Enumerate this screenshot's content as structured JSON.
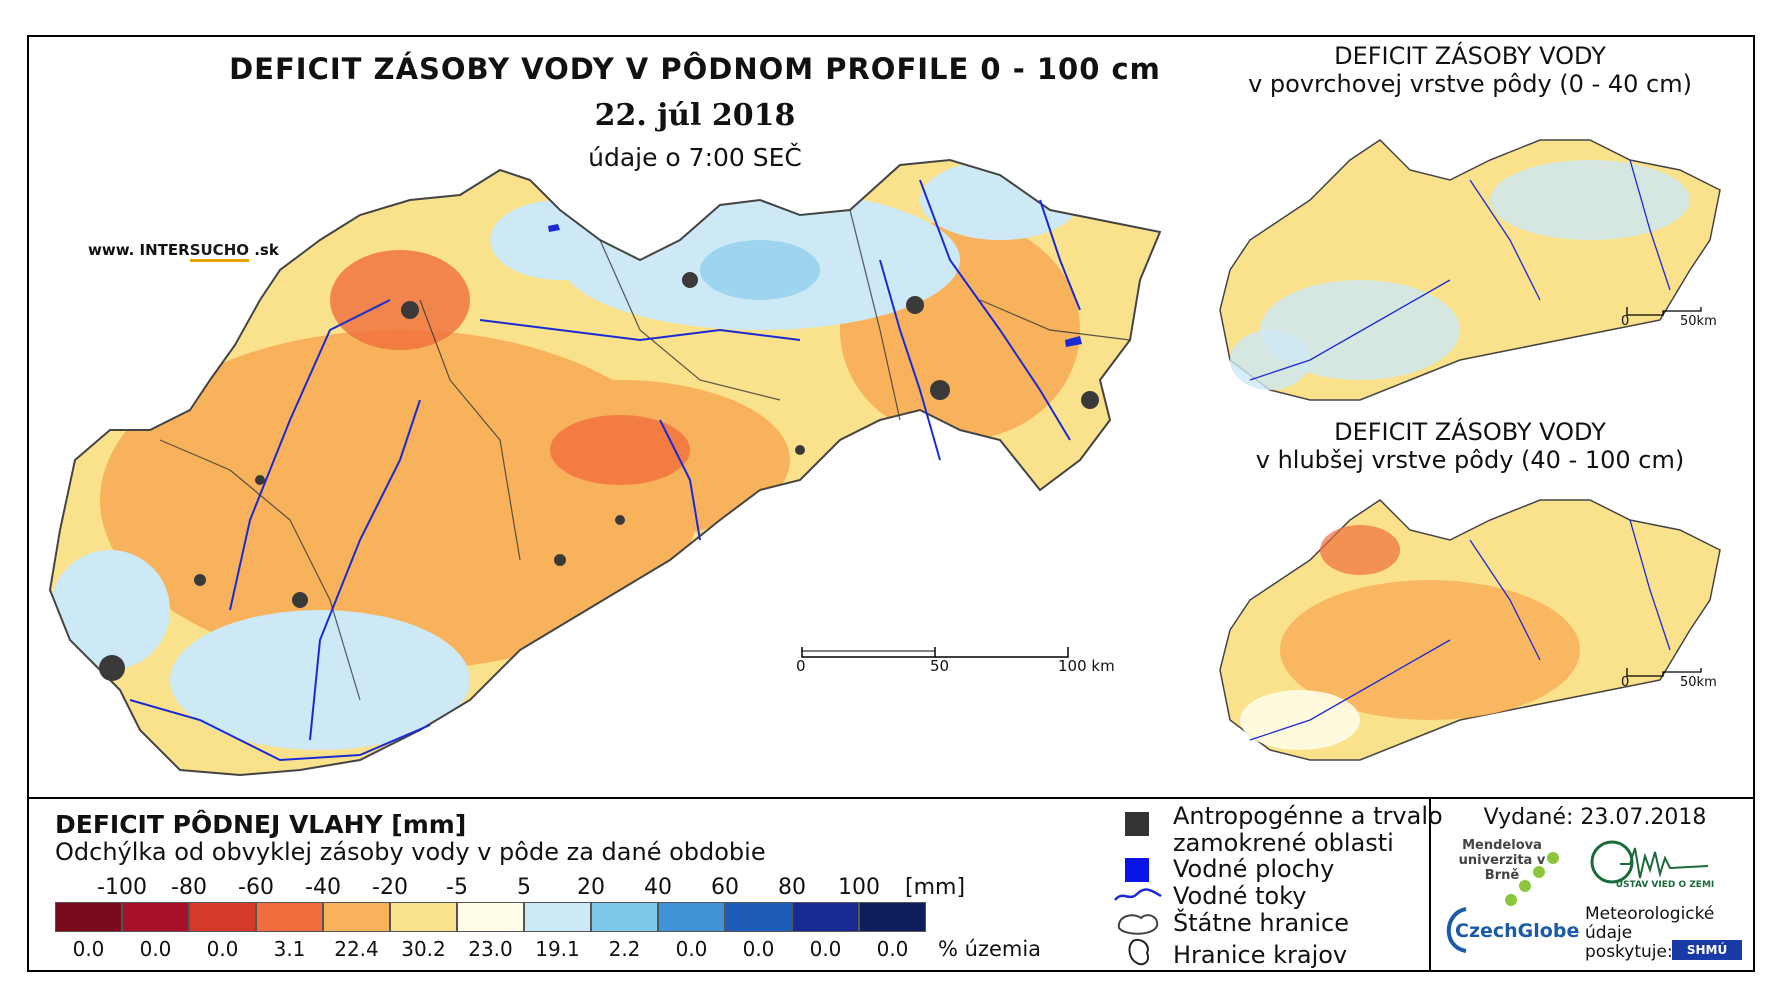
{
  "title": "DEFICIT ZÁSOBY VODY V PÔDNOM PROFILE 0 - 100 cm",
  "date": "22. júl 2018",
  "data_time": "údaje o 7:00 SEČ",
  "website": {
    "prefix": "www. INTER",
    "accent": "SUCHO",
    "suffix": " .sk"
  },
  "main_scale": {
    "labels": [
      "0",
      "50",
      "100 km"
    ]
  },
  "inset_top": {
    "title_line1": "DEFICIT ZÁSOBY VODY",
    "title_line2": "v povrchovej vrstve pôdy (0 - 40 cm)",
    "scale": [
      "0",
      "50km"
    ]
  },
  "inset_bottom": {
    "title_line1": "DEFICIT ZÁSOBY VODY",
    "title_line2": "v hlubšej vrstve pôdy (40 - 100 cm)",
    "scale": [
      "0",
      "50km"
    ]
  },
  "legend": {
    "title": "DEFICIT PÔDNEJ VLAHY [mm]",
    "subtitle": "Odchýlka od obvyklej zásoby vody v pôde za dané obdobie",
    "breaks": [
      "-100",
      "-80",
      "-60",
      "-40",
      "-20",
      "-5",
      "5",
      "20",
      "40",
      "60",
      "80",
      "100"
    ],
    "unit": "[mm]",
    "colors": [
      "#7a0a1e",
      "#a8102a",
      "#d43a2a",
      "#f06e3c",
      "#f8b25c",
      "#fae18c",
      "#fffde6",
      "#cde9f6",
      "#7ec8ea",
      "#3f93d6",
      "#1d5cb8",
      "#1a2a94",
      "#0d1f5c"
    ],
    "percent": [
      "0.0",
      "0.0",
      "0.0",
      "3.1",
      "22.4",
      "30.2",
      "23.0",
      "19.1",
      "2.2",
      "0.0",
      "0.0",
      "0.0",
      "0.0"
    ],
    "percent_label": "% územia"
  },
  "symbols": {
    "urban_line1": "Antropogénne a trvalo",
    "urban_line2": "zamokrené oblasti",
    "water": "Vodné plochy",
    "rivers": "Vodné toky",
    "state": "Štátne hranice",
    "regions": "Hranice krajov"
  },
  "issued": "Vydané: 23.07.2018",
  "logos": {
    "mendel": "Mendelova univerzita v Brně",
    "czechglobe": "CzechGlobe",
    "uvgz": "ÚSTAV VIED O ZEMI",
    "meteo_line1": "Meteorologické",
    "meteo_line2": "údaje",
    "meteo_line3": "poskytuje:",
    "shmu": "SHMÚ"
  }
}
